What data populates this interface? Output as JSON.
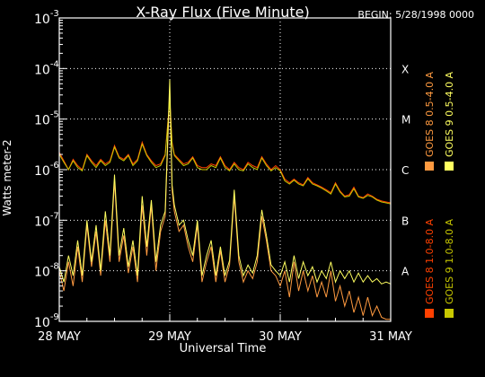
{
  "chart_data": {
    "type": "line",
    "title": "X-Ray Flux (Five Minute)",
    "begin_label": "BEGIN: 5/28/1998 0000",
    "xlabel": "Universal Time",
    "ylabel": "Watts meter-2",
    "x_range_hours": [
      0,
      72
    ],
    "x_ticks": [
      {
        "hour": 0,
        "label": "28 MAY"
      },
      {
        "hour": 24,
        "label": "29 MAY"
      },
      {
        "hour": 48,
        "label": "30 MAY"
      },
      {
        "hour": 72,
        "label": "31 MAY"
      }
    ],
    "y_scale": "log",
    "y_range": [
      1e-09,
      0.001
    ],
    "y_ticks": [
      {
        "exp": -9,
        "label": "10",
        "sup": "-9"
      },
      {
        "exp": -8,
        "label": "10",
        "sup": "-8"
      },
      {
        "exp": -7,
        "label": "10",
        "sup": "-7"
      },
      {
        "exp": -6,
        "label": "10",
        "sup": "-6"
      },
      {
        "exp": -5,
        "label": "10",
        "sup": "-5"
      },
      {
        "exp": -4,
        "label": "10",
        "sup": "-4"
      },
      {
        "exp": -3,
        "label": "10",
        "sup": "-3"
      }
    ],
    "flare_classes": [
      {
        "label": "A",
        "value": 1e-08
      },
      {
        "label": "B",
        "value": 1e-07
      },
      {
        "label": "C",
        "value": 1e-06
      },
      {
        "label": "M",
        "value": 1e-05
      },
      {
        "label": "X",
        "value": 0.0001
      }
    ],
    "grid": {
      "day_lines": [
        24,
        48
      ],
      "class_lines": [
        1e-08,
        1e-07,
        1e-06,
        1e-05,
        0.0001
      ]
    },
    "legend_placement": "right, vertical",
    "series": [
      {
        "name": "GOES 8 1.0-8.0 A",
        "color": "#ff4000",
        "points": [
          [
            0,
            2.2e-06
          ],
          [
            1,
            1.5e-06
          ],
          [
            2,
            1e-06
          ],
          [
            3,
            1.6e-06
          ],
          [
            4,
            1.2e-06
          ],
          [
            5,
            1e-06
          ],
          [
            6,
            2e-06
          ],
          [
            7,
            1.5e-06
          ],
          [
            8,
            1.2e-06
          ],
          [
            9,
            1.6e-06
          ],
          [
            10,
            1.3e-06
          ],
          [
            11,
            1.5e-06
          ],
          [
            12,
            3e-06
          ],
          [
            13,
            1.8e-06
          ],
          [
            14,
            1.6e-06
          ],
          [
            15,
            2e-06
          ],
          [
            16,
            1.3e-06
          ],
          [
            17,
            1.6e-06
          ],
          [
            18,
            3.5e-06
          ],
          [
            19,
            2e-06
          ],
          [
            20,
            1.5e-06
          ],
          [
            21,
            1.2e-06
          ],
          [
            22,
            1.3e-06
          ],
          [
            23,
            2e-06
          ],
          [
            24,
            2.5e-05
          ],
          [
            24.5,
            3.5e-06
          ],
          [
            25,
            2e-06
          ],
          [
            26,
            1.6e-06
          ],
          [
            27,
            1.3e-06
          ],
          [
            28,
            1.4e-06
          ],
          [
            29,
            1.8e-06
          ],
          [
            30,
            1.2e-06
          ],
          [
            31,
            1.1e-06
          ],
          [
            32,
            1.1e-06
          ],
          [
            33,
            1.3e-06
          ],
          [
            34,
            1.2e-06
          ],
          [
            35,
            1.8e-06
          ],
          [
            36,
            1.2e-06
          ],
          [
            37,
            1e-06
          ],
          [
            38,
            1.4e-06
          ],
          [
            39,
            1.1e-06
          ],
          [
            40,
            1e-06
          ],
          [
            41,
            1.4e-06
          ],
          [
            42,
            1.2e-06
          ],
          [
            43,
            1.1e-06
          ],
          [
            44,
            1.8e-06
          ],
          [
            45,
            1.3e-06
          ],
          [
            46,
            1e-06
          ],
          [
            47,
            1.2e-06
          ],
          [
            48,
            1e-06
          ],
          [
            49,
            6.5e-07
          ],
          [
            50,
            5.5e-07
          ],
          [
            51,
            6.5e-07
          ],
          [
            52,
            5.5e-07
          ],
          [
            53,
            5e-07
          ],
          [
            54,
            7e-07
          ],
          [
            55,
            5.5e-07
          ],
          [
            56,
            5e-07
          ],
          [
            57,
            4.5e-07
          ],
          [
            58,
            4e-07
          ],
          [
            59,
            3.5e-07
          ],
          [
            60,
            5.5e-07
          ],
          [
            61,
            3.8e-07
          ],
          [
            62,
            3e-07
          ],
          [
            63,
            3.2e-07
          ],
          [
            64,
            4.5e-07
          ],
          [
            65,
            3e-07
          ],
          [
            66,
            2.8e-07
          ],
          [
            67,
            3.3e-07
          ],
          [
            68,
            3e-07
          ],
          [
            69,
            2.6e-07
          ],
          [
            70,
            2.4e-07
          ],
          [
            71,
            2.3e-07
          ],
          [
            72,
            2.2e-07
          ]
        ]
      },
      {
        "name": "GOES 8 0.5-4.0 A",
        "color": "#ff9a40",
        "points": [
          [
            0,
            1e-08
          ],
          [
            1,
            4e-09
          ],
          [
            2,
            1.5e-08
          ],
          [
            3,
            5e-09
          ],
          [
            4,
            3e-08
          ],
          [
            5,
            6e-09
          ],
          [
            6,
            8e-08
          ],
          [
            7,
            1.2e-08
          ],
          [
            8,
            6e-08
          ],
          [
            9,
            8e-09
          ],
          [
            10,
            1e-07
          ],
          [
            11,
            1.5e-08
          ],
          [
            12,
            6e-07
          ],
          [
            13,
            1.5e-08
          ],
          [
            14,
            5e-08
          ],
          [
            15,
            9e-09
          ],
          [
            16,
            3e-08
          ],
          [
            17,
            6e-09
          ],
          [
            18,
            2e-07
          ],
          [
            19,
            2e-08
          ],
          [
            20,
            2e-07
          ],
          [
            21,
            1e-08
          ],
          [
            22,
            6e-08
          ],
          [
            23,
            1.2e-07
          ],
          [
            24,
            4e-05
          ],
          [
            24.5,
            4e-07
          ],
          [
            25,
            1.5e-07
          ],
          [
            26,
            6e-08
          ],
          [
            27,
            8e-08
          ],
          [
            28,
            3e-08
          ],
          [
            29,
            1.5e-08
          ],
          [
            30,
            8e-08
          ],
          [
            31,
            6e-09
          ],
          [
            32,
            1.5e-08
          ],
          [
            33,
            3e-08
          ],
          [
            34,
            6e-09
          ],
          [
            35,
            2.5e-08
          ],
          [
            36,
            6e-09
          ],
          [
            37,
            1.3e-08
          ],
          [
            38,
            3e-07
          ],
          [
            39,
            1.5e-08
          ],
          [
            40,
            6e-09
          ],
          [
            41,
            1e-08
          ],
          [
            42,
            7e-09
          ],
          [
            43,
            1.5e-08
          ],
          [
            44,
            1.2e-07
          ],
          [
            45,
            4e-08
          ],
          [
            46,
            1e-08
          ],
          [
            47,
            8e-09
          ],
          [
            48,
            5e-09
          ],
          [
            49,
            1e-08
          ],
          [
            50,
            3e-09
          ],
          [
            51,
            1.5e-08
          ],
          [
            52,
            4e-09
          ],
          [
            53,
            1e-08
          ],
          [
            54,
            4e-09
          ],
          [
            55,
            8e-09
          ],
          [
            56,
            3e-09
          ],
          [
            57,
            6e-09
          ],
          [
            58,
            3e-09
          ],
          [
            59,
            1e-08
          ],
          [
            60,
            2.5e-09
          ],
          [
            61,
            5e-09
          ],
          [
            62,
            2e-09
          ],
          [
            63,
            4e-09
          ],
          [
            64,
            1.5e-09
          ],
          [
            65,
            3e-09
          ],
          [
            66,
            1.3e-09
          ],
          [
            67,
            3e-09
          ],
          [
            68,
            1.3e-09
          ],
          [
            69,
            2e-09
          ],
          [
            70,
            1.2e-09
          ],
          [
            71,
            1.1e-09
          ],
          [
            72,
            1.1e-09
          ]
        ]
      },
      {
        "name": "GOES 9 1.0-8.0 A",
        "color": "#c8c800",
        "points": [
          [
            0,
            2e-06
          ],
          [
            1,
            1.4e-06
          ],
          [
            2,
            1e-06
          ],
          [
            3,
            1.5e-06
          ],
          [
            4,
            1.1e-06
          ],
          [
            5,
            9.5e-07
          ],
          [
            6,
            1.9e-06
          ],
          [
            7,
            1.4e-06
          ],
          [
            8,
            1.1e-06
          ],
          [
            9,
            1.5e-06
          ],
          [
            10,
            1.2e-06
          ],
          [
            11,
            1.4e-06
          ],
          [
            12,
            2.8e-06
          ],
          [
            13,
            1.7e-06
          ],
          [
            14,
            1.5e-06
          ],
          [
            15,
            1.9e-06
          ],
          [
            16,
            1.2e-06
          ],
          [
            17,
            1.5e-06
          ],
          [
            18,
            3.2e-06
          ],
          [
            19,
            1.9e-06
          ],
          [
            20,
            1.4e-06
          ],
          [
            21,
            1.1e-06
          ],
          [
            22,
            1.2e-06
          ],
          [
            23,
            1.9e-06
          ],
          [
            24,
            2.2e-05
          ],
          [
            24.5,
            3.2e-06
          ],
          [
            25,
            1.9e-06
          ],
          [
            26,
            1.5e-06
          ],
          [
            27,
            1.2e-06
          ],
          [
            28,
            1.3e-06
          ],
          [
            29,
            1.7e-06
          ],
          [
            30,
            1.1e-06
          ],
          [
            31,
            1e-06
          ],
          [
            32,
            1e-06
          ],
          [
            33,
            1.2e-06
          ],
          [
            34,
            1.1e-06
          ],
          [
            35,
            1.7e-06
          ],
          [
            36,
            1.1e-06
          ],
          [
            37,
            9.5e-07
          ],
          [
            38,
            1.3e-06
          ],
          [
            39,
            1e-06
          ],
          [
            40,
            9.5e-07
          ],
          [
            41,
            1.3e-06
          ],
          [
            42,
            1.1e-06
          ],
          [
            43,
            1e-06
          ],
          [
            44,
            1.7e-06
          ],
          [
            45,
            1.2e-06
          ],
          [
            46,
            9.5e-07
          ],
          [
            47,
            1.1e-06
          ],
          [
            48,
            9.5e-07
          ],
          [
            49,
            6e-07
          ],
          [
            50,
            5.2e-07
          ],
          [
            51,
            6.2e-07
          ],
          [
            52,
            5.2e-07
          ],
          [
            53,
            4.8e-07
          ],
          [
            54,
            6.6e-07
          ],
          [
            55,
            5.2e-07
          ],
          [
            56,
            4.8e-07
          ],
          [
            57,
            4.3e-07
          ],
          [
            58,
            3.8e-07
          ],
          [
            59,
            3.3e-07
          ],
          [
            60,
            5.2e-07
          ],
          [
            61,
            3.6e-07
          ],
          [
            62,
            2.9e-07
          ],
          [
            63,
            3e-07
          ],
          [
            64,
            4.2e-07
          ],
          [
            65,
            2.9e-07
          ],
          [
            66,
            2.7e-07
          ],
          [
            67,
            3.1e-07
          ],
          [
            68,
            2.9e-07
          ],
          [
            69,
            2.5e-07
          ],
          [
            70,
            2.3e-07
          ],
          [
            71,
            2.2e-07
          ],
          [
            72,
            2.1e-07
          ]
        ]
      },
      {
        "name": "GOES 9 0.5-4.0 A",
        "color": "#ffff60",
        "points": [
          [
            0,
            1.2e-08
          ],
          [
            1,
            6e-09
          ],
          [
            2,
            2e-08
          ],
          [
            3,
            8e-09
          ],
          [
            4,
            4e-08
          ],
          [
            5,
            8e-09
          ],
          [
            6,
            1e-07
          ],
          [
            7,
            1.5e-08
          ],
          [
            8,
            8e-08
          ],
          [
            9,
            1e-08
          ],
          [
            10,
            1.5e-07
          ],
          [
            11,
            2e-08
          ],
          [
            12,
            8e-07
          ],
          [
            13,
            2e-08
          ],
          [
            14,
            7e-08
          ],
          [
            15,
            1.2e-08
          ],
          [
            16,
            4e-08
          ],
          [
            17,
            8e-09
          ],
          [
            18,
            3e-07
          ],
          [
            19,
            3e-08
          ],
          [
            20,
            2.5e-07
          ],
          [
            21,
            1.5e-08
          ],
          [
            22,
            8e-08
          ],
          [
            23,
            1.5e-07
          ],
          [
            24,
            6e-05
          ],
          [
            24.5,
            5e-07
          ],
          [
            25,
            2e-07
          ],
          [
            26,
            8e-08
          ],
          [
            27,
            1e-07
          ],
          [
            28,
            4e-08
          ],
          [
            29,
            2e-08
          ],
          [
            30,
            1e-07
          ],
          [
            31,
            8e-09
          ],
          [
            32,
            2e-08
          ],
          [
            33,
            4e-08
          ],
          [
            34,
            8e-09
          ],
          [
            35,
            3e-08
          ],
          [
            36,
            8e-09
          ],
          [
            37,
            1.6e-08
          ],
          [
            38,
            4e-07
          ],
          [
            39,
            2e-08
          ],
          [
            40,
            8e-09
          ],
          [
            41,
            1.3e-08
          ],
          [
            42,
            9e-09
          ],
          [
            43,
            2e-08
          ],
          [
            44,
            1.6e-07
          ],
          [
            45,
            5e-08
          ],
          [
            46,
            1.3e-08
          ],
          [
            47,
            1e-08
          ],
          [
            48,
            8e-09
          ],
          [
            49,
            1.5e-08
          ],
          [
            50,
            6e-09
          ],
          [
            51,
            2e-08
          ],
          [
            52,
            7e-09
          ],
          [
            53,
            1.5e-08
          ],
          [
            54,
            8e-09
          ],
          [
            55,
            1.2e-08
          ],
          [
            56,
            6e-09
          ],
          [
            57,
            1e-08
          ],
          [
            58,
            7e-09
          ],
          [
            59,
            1.5e-08
          ],
          [
            60,
            6e-09
          ],
          [
            61,
            1e-08
          ],
          [
            62,
            7e-09
          ],
          [
            63,
            1e-08
          ],
          [
            64,
            6e-09
          ],
          [
            65,
            9e-09
          ],
          [
            66,
            6e-09
          ],
          [
            67,
            8e-09
          ],
          [
            68,
            6e-09
          ],
          [
            69,
            7e-09
          ],
          [
            70,
            5.5e-09
          ],
          [
            71,
            6e-09
          ],
          [
            72,
            5.5e-09
          ]
        ]
      }
    ]
  }
}
